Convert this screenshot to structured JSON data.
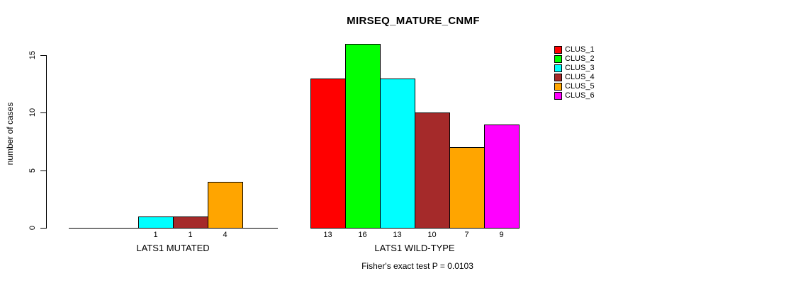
{
  "title": "MIRSEQ_MATURE_CNMF",
  "chart_data": {
    "type": "bar",
    "title": "MIRSEQ_MATURE_CNMF",
    "ylabel": "number of cases",
    "ylim": [
      0,
      15
    ],
    "yticks": [
      0,
      5,
      10,
      15
    ],
    "grid": false,
    "categories": [
      "CLUS_1",
      "CLUS_2",
      "CLUS_3",
      "CLUS_4",
      "CLUS_5",
      "CLUS_6"
    ],
    "colors": [
      "#FF0000",
      "#00FF00",
      "#00FFFF",
      "#A52A2A",
      "#FFA500",
      "#FF00FF"
    ],
    "groups": [
      {
        "label": "LATS1 MUTATED",
        "values": [
          0,
          0,
          1,
          1,
          4,
          0
        ]
      },
      {
        "label": "LATS1 WILD-TYPE",
        "values": [
          13,
          16,
          13,
          10,
          7,
          9
        ]
      }
    ],
    "legend": {
      "position": "top-right",
      "entries": [
        "CLUS_1",
        "CLUS_2",
        "CLUS_3",
        "CLUS_4",
        "CLUS_5",
        "CLUS_6"
      ]
    },
    "annotation": "Fisher's exact test P = 0.0103"
  }
}
